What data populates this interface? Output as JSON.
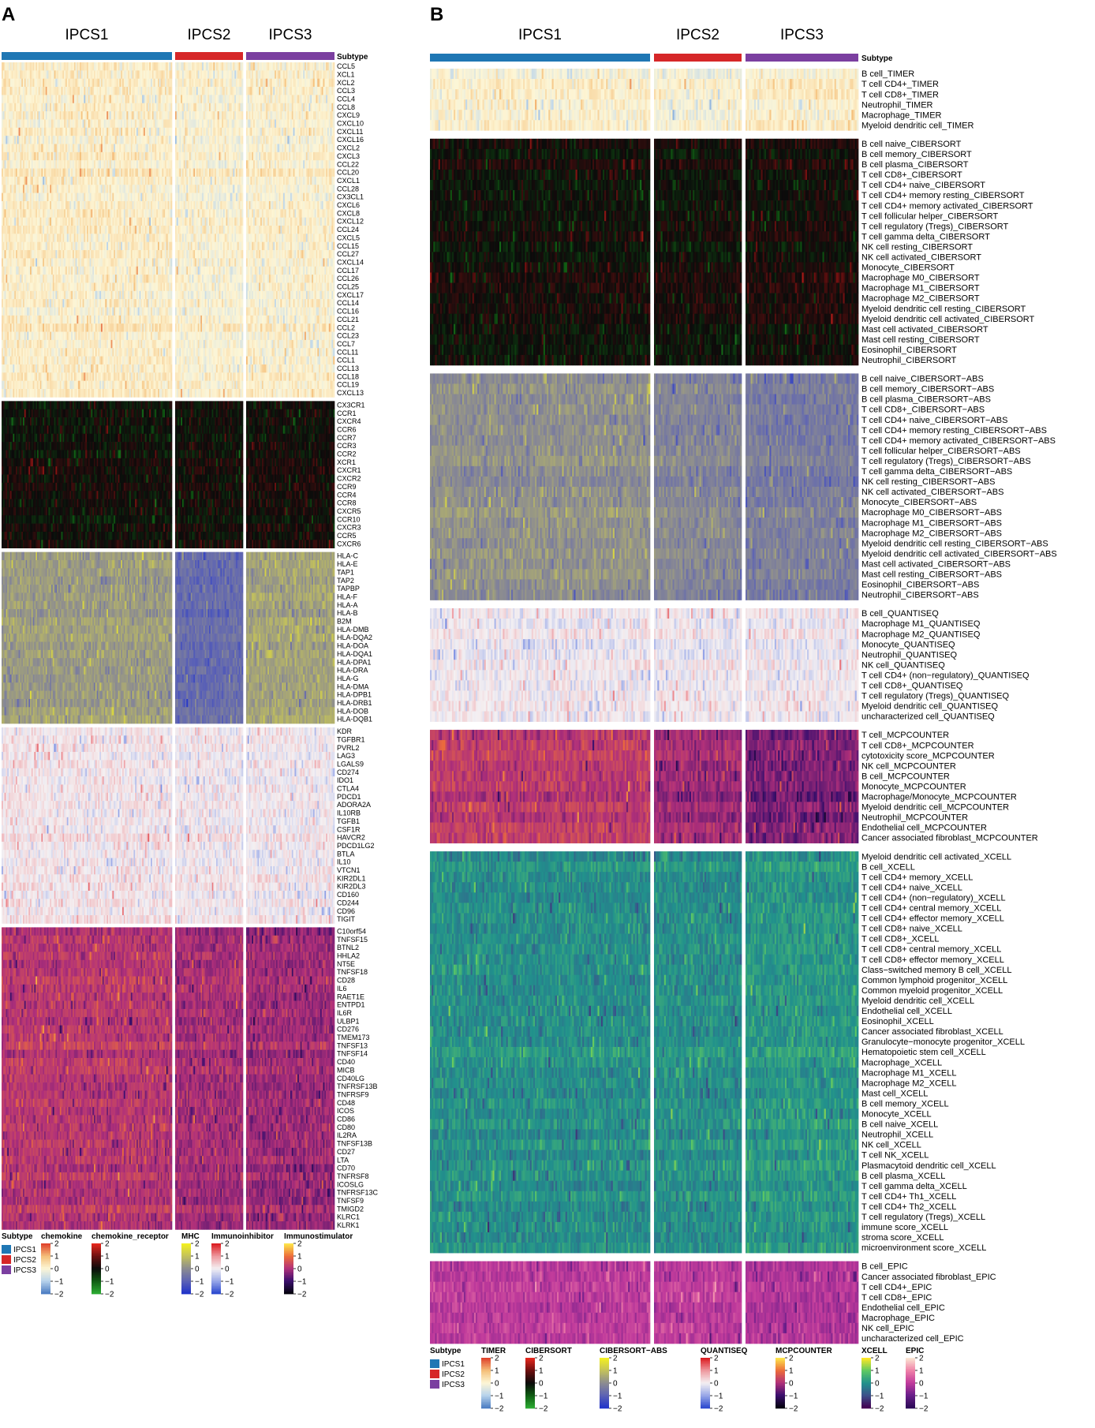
{
  "chart_data": [
    {
      "type": "heatmap",
      "panel_label": "A",
      "subtype_header": "Subtype",
      "columns": [
        {
          "name": "IPCS1",
          "color": "#1f77b4"
        },
        {
          "name": "IPCS2",
          "color": "#d62728"
        },
        {
          "name": "IPCS3",
          "color": "#7b3fa0"
        }
      ],
      "blocks": [
        {
          "name": "chemokine",
          "palette": "blue-white-red-light",
          "rows": [
            "CCL5",
            "XCL1",
            "XCL2",
            "CCL3",
            "CCL4",
            "CCL8",
            "CXCL9",
            "CXCL10",
            "CXCL11",
            "CXCL16",
            "CXCL2",
            "CXCL3",
            "CCL22",
            "CCL20",
            "CXCL1",
            "CCL28",
            "CX3CL1",
            "CXCL6",
            "CXCL8",
            "CXCL12",
            "CCL24",
            "CXCL5",
            "CCL15",
            "CCL27",
            "CXCL14",
            "CCL17",
            "CCL26",
            "CCL25",
            "CXCL17",
            "CCL14",
            "CCL16",
            "CCL21",
            "CCL2",
            "CCL23",
            "CCL7",
            "CCL11",
            "CCL1",
            "CCL13",
            "CCL18",
            "CCL19",
            "CXCL13"
          ]
        },
        {
          "name": "chemokine_receptor",
          "palette": "green-black-red",
          "rows": [
            "CX3CR1",
            "CCR1",
            "CXCR4",
            "CCR6",
            "CCR7",
            "CCR3",
            "CCR2",
            "XCR1",
            "CXCR1",
            "CXCR2",
            "CCR9",
            "CCR4",
            "CCR8",
            "CXCR5",
            "CCR10",
            "CXCR3",
            "CCR5",
            "CXCR6"
          ]
        },
        {
          "name": "MHC",
          "palette": "blue-gray-yellow",
          "rows": [
            "HLA-C",
            "HLA-E",
            "TAP1",
            "TAP2",
            "TAPBP",
            "HLA-F",
            "HLA-A",
            "HLA-B",
            "B2M",
            "HLA-DMB",
            "HLA-DQA2",
            "HLA-DOA",
            "HLA-DQA1",
            "HLA-DPA1",
            "HLA-DRA",
            "HLA-G",
            "HLA-DMA",
            "HLA-DPB1",
            "HLA-DRB1",
            "HLA-DOB",
            "HLA-DQB1"
          ]
        },
        {
          "name": "Immunoinhibitor",
          "palette": "blue-white-red",
          "rows": [
            "KDR",
            "TGFBR1",
            "PVRL2",
            "LAG3",
            "LGALS9",
            "CD274",
            "IDO1",
            "CTLA4",
            "PDCD1",
            "ADORA2A",
            "IL10RB",
            "TGFB1",
            "CSF1R",
            "HAVCR2",
            "PDCD1LG2",
            "BTLA",
            "IL10",
            "VTCN1",
            "KIR2DL1",
            "KIR2DL3",
            "CD160",
            "CD244",
            "CD96",
            "TIGIT"
          ]
        },
        {
          "name": "Immunostimulator",
          "palette": "black-purple-orange",
          "rows": [
            "C10orf54",
            "TNFSF15",
            "BTNL2",
            "HHLA2",
            "NT5E",
            "TNFSF18",
            "CD28",
            "IL6",
            "RAET1E",
            "ENTPD1",
            "IL6R",
            "ULBP1",
            "CD276",
            "TMEM173",
            "TNFSF13",
            "TNFSF14",
            "CD40",
            "MICB",
            "CD40LG",
            "TNFRSF13B",
            "TNFRSF9",
            "CD48",
            "ICOS",
            "CD86",
            "CD80",
            "IL2RA",
            "TNFSF13B",
            "CD27",
            "LTA",
            "CD70",
            "TNFRSF8",
            "ICOSLG",
            "TNFRSF13C",
            "TNFSF9",
            "TMIGD2",
            "KLRC1",
            "KLRK1"
          ]
        }
      ],
      "legend": {
        "subtype_title": "Subtype",
        "scale_ticks": [
          "2",
          "1",
          "0",
          "−1",
          "−2"
        ]
      }
    },
    {
      "type": "heatmap",
      "panel_label": "B",
      "subtype_header": "Subtype",
      "columns": [
        {
          "name": "IPCS1",
          "color": "#1f77b4"
        },
        {
          "name": "IPCS2",
          "color": "#d62728"
        },
        {
          "name": "IPCS3",
          "color": "#7b3fa0"
        }
      ],
      "blocks": [
        {
          "name": "TIMER",
          "palette": "blue-white-red-light",
          "rows": [
            "B cell_TIMER",
            "T cell CD4+_TIMER",
            "T cell CD8+_TIMER",
            "Neutrophil_TIMER",
            "Macrophage_TIMER",
            "Myeloid dendritic cell_TIMER"
          ]
        },
        {
          "name": "CIBERSORT",
          "palette": "green-black-red",
          "rows": [
            "B cell naive_CIBERSORT",
            "B cell memory_CIBERSORT",
            "B cell plasma_CIBERSORT",
            "T cell CD8+_CIBERSORT",
            "T cell CD4+ naive_CIBERSORT",
            "T cell CD4+ memory resting_CIBERSORT",
            "T cell CD4+ memory activated_CIBERSORT",
            "T cell follicular helper_CIBERSORT",
            "T cell regulatory (Tregs)_CIBERSORT",
            "T cell gamma delta_CIBERSORT",
            "NK cell resting_CIBERSORT",
            "NK cell activated_CIBERSORT",
            "Monocyte_CIBERSORT",
            "Macrophage M0_CIBERSORT",
            "Macrophage M1_CIBERSORT",
            "Macrophage M2_CIBERSORT",
            "Myeloid dendritic cell resting_CIBERSORT",
            "Myeloid dendritic cell activated_CIBERSORT",
            "Mast cell activated_CIBERSORT",
            "Mast cell resting_CIBERSORT",
            "Eosinophil_CIBERSORT",
            "Neutrophil_CIBERSORT"
          ]
        },
        {
          "name": "CIBERSORT−ABS",
          "palette": "blue-gray-yellow",
          "rows": [
            "B cell naive_CIBERSORT−ABS",
            "B cell memory_CIBERSORT−ABS",
            "B cell plasma_CIBERSORT−ABS",
            "T cell CD8+_CIBERSORT−ABS",
            "T cell CD4+ naive_CIBERSORT−ABS",
            "T cell CD4+ memory resting_CIBERSORT−ABS",
            "T cell CD4+ memory activated_CIBERSORT−ABS",
            "T cell follicular helper_CIBERSORT−ABS",
            "T cell regulatory (Tregs)_CIBERSORT−ABS",
            "T cell gamma delta_CIBERSORT−ABS",
            "NK cell resting_CIBERSORT−ABS",
            "NK cell activated_CIBERSORT−ABS",
            "Monocyte_CIBERSORT−ABS",
            "Macrophage M0_CIBERSORT−ABS",
            "Macrophage M1_CIBERSORT−ABS",
            "Macrophage M2_CIBERSORT−ABS",
            "Myeloid dendritic cell resting_CIBERSORT−ABS",
            "Myeloid dendritic cell activated_CIBERSORT−ABS",
            "Mast cell activated_CIBERSORT−ABS",
            "Mast cell resting_CIBERSORT−ABS",
            "Eosinophil_CIBERSORT−ABS",
            "Neutrophil_CIBERSORT−ABS"
          ]
        },
        {
          "name": "QUANTISEQ",
          "palette": "blue-white-red",
          "rows": [
            "B cell_QUANTISEQ",
            "Macrophage M1_QUANTISEQ",
            "Macrophage M2_QUANTISEQ",
            "Monocyte_QUANTISEQ",
            "Neutrophil_QUANTISEQ",
            "NK cell_QUANTISEQ",
            "T cell CD4+ (non−regulatory)_QUANTISEQ",
            "T cell CD8+_QUANTISEQ",
            "T cell regulatory (Tregs)_QUANTISEQ",
            "Myeloid dendritic cell_QUANTISEQ",
            "uncharacterized cell_QUANTISEQ"
          ]
        },
        {
          "name": "MCPCOUNTER",
          "palette": "black-purple-orange",
          "rows": [
            "T cell_MCPCOUNTER",
            "T cell CD8+_MCPCOUNTER",
            "cytotoxicity score_MCPCOUNTER",
            "NK cell_MCPCOUNTER",
            "B cell_MCPCOUNTER",
            "Monocyte_MCPCOUNTER",
            "Macrophage/Monocyte_MCPCOUNTER",
            "Myeloid dendritic cell_MCPCOUNTER",
            "Neutrophil_MCPCOUNTER",
            "Endothelial cell_MCPCOUNTER",
            "Cancer associated fibroblast_MCPCOUNTER"
          ]
        },
        {
          "name": "XCELL",
          "palette": "viridis",
          "rows": [
            "Myeloid dendritic cell activated_XCELL",
            "B cell_XCELL",
            "T cell CD4+ memory_XCELL",
            "T cell CD4+ naive_XCELL",
            "T cell CD4+ (non−regulatory)_XCELL",
            "T cell CD4+ central memory_XCELL",
            "T cell CD4+ effector memory_XCELL",
            "T cell CD8+ naive_XCELL",
            "T cell CD8+_XCELL",
            "T cell CD8+ central memory_XCELL",
            "T cell CD8+ effector memory_XCELL",
            "Class−switched memory B cell_XCELL",
            "Common lymphoid progenitor_XCELL",
            "Common myeloid progenitor_XCELL",
            "Myeloid dendritic cell_XCELL",
            "Endothelial cell_XCELL",
            "Eosinophil_XCELL",
            "Cancer associated fibroblast_XCELL",
            "Granulocyte−monocyte progenitor_XCELL",
            "Hematopoietic stem cell_XCELL",
            "Macrophage_XCELL",
            "Macrophage M1_XCELL",
            "Macrophage M2_XCELL",
            "Mast cell_XCELL",
            "B cell memory_XCELL",
            "Monocyte_XCELL",
            "B cell naive_XCELL",
            "Neutrophil_XCELL",
            "NK cell_XCELL",
            "T cell NK_XCELL",
            "Plasmacytoid dendritic cell_XCELL",
            "B cell plasma_XCELL",
            "T cell gamma delta_XCELL",
            "T cell CD4+ Th1_XCELL",
            "T cell CD4+ Th2_XCELL",
            "T cell regulatory (Tregs)_XCELL",
            "immune score_XCELL",
            "stroma score_XCELL",
            "microenvironment score_XCELL"
          ]
        },
        {
          "name": "EPIC",
          "palette": "purple-pink",
          "rows": [
            "B cell_EPIC",
            "Cancer associated fibroblast_EPIC",
            "T cell CD4+_EPIC",
            "T cell CD8+_EPIC",
            "Endothelial cell_EPIC",
            "Macrophage_EPIC",
            "NK cell_EPIC",
            "uncharacterized cell_EPIC"
          ]
        }
      ],
      "legend": {
        "subtype_title": "Subtype",
        "scale_ticks": [
          "2",
          "1",
          "0",
          "−1",
          "−2"
        ]
      }
    }
  ]
}
